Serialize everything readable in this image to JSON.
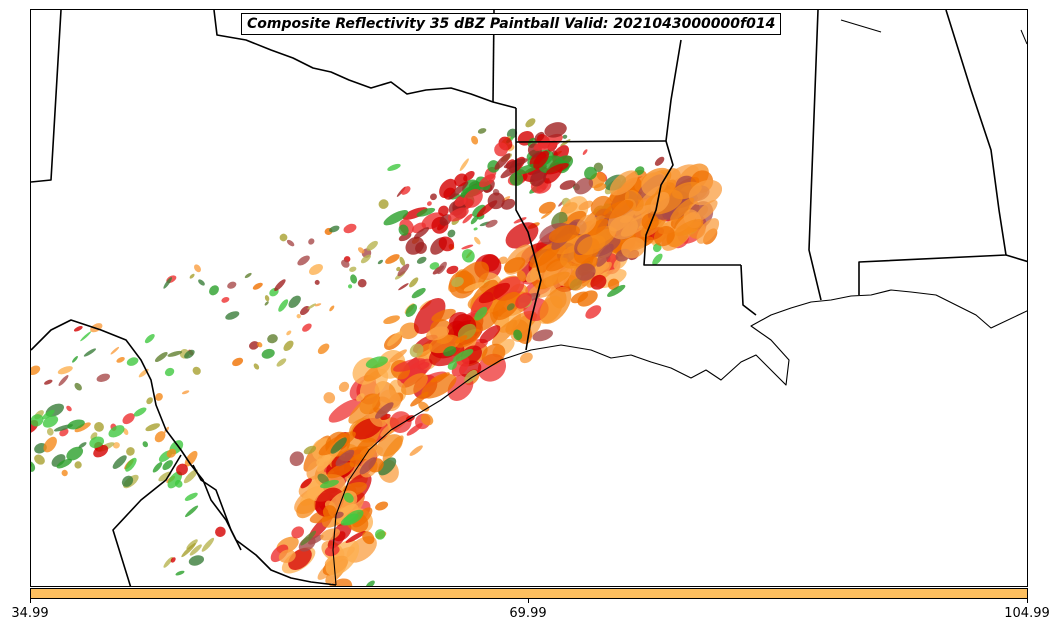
{
  "title": "Composite Reflectivity 35 dBZ Paintball Valid: 2021043000000f014",
  "colorbar": {
    "color": "#fdbf5f",
    "ticks": [
      "34.99",
      "69.99",
      "104.99"
    ]
  },
  "member_colors": [
    "#d40000",
    "#ee3030",
    "#f07000",
    "#f58a1a",
    "#fa9e40",
    "#fdb050",
    "#a02020",
    "#a84a4a",
    "#2aa02a",
    "#40c840",
    "#3a7d3a",
    "#a8a030",
    "#b8b450",
    "#608030"
  ]
}
